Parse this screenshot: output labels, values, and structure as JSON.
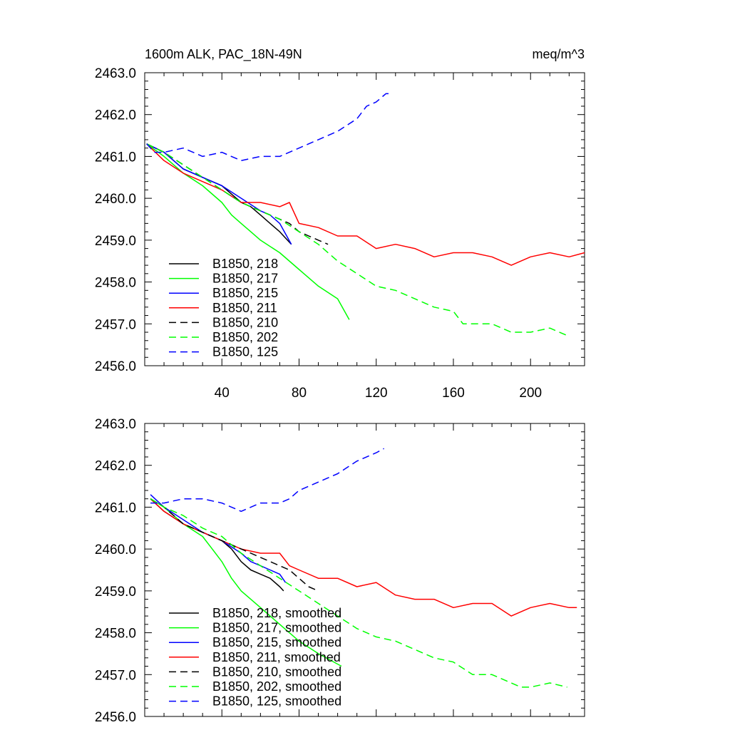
{
  "chart_data": [
    {
      "type": "line",
      "panel": "top",
      "title": "1600m ALK, PAC_18N-49N",
      "units": "meq/m^3",
      "xlabel": "",
      "ylabel": "",
      "xlim": [
        0,
        228
      ],
      "ylim": [
        2456.0,
        2463.0
      ],
      "x_ticks": [
        40,
        80,
        120,
        160,
        200
      ],
      "x_tick_labels": [
        "40",
        "80",
        "120",
        "160",
        "200"
      ],
      "y_ticks": [
        2456.0,
        2457.0,
        2458.0,
        2459.0,
        2460.0,
        2461.0,
        2462.0,
        2463.0
      ],
      "y_tick_labels": [
        "2456.0",
        "2457.0",
        "2458.0",
        "2459.0",
        "2460.0",
        "2461.0",
        "2462.0",
        "2463.0"
      ],
      "legend_position": "bottom-left",
      "series": [
        {
          "name": "B1850, 218",
          "color": "#000000",
          "dash": "solid",
          "x": [
            1,
            10,
            20,
            30,
            40,
            45,
            50,
            55,
            60,
            65,
            70,
            76
          ],
          "y": [
            2461.3,
            2461.1,
            2460.7,
            2460.5,
            2460.3,
            2460.1,
            2459.9,
            2459.8,
            2459.6,
            2459.4,
            2459.2,
            2458.9
          ]
        },
        {
          "name": "B1850, 217",
          "color": "#00ff00",
          "dash": "solid",
          "x": [
            1,
            10,
            20,
            30,
            40,
            45,
            50,
            55,
            60,
            70,
            80,
            90,
            100,
            106
          ],
          "y": [
            2461.3,
            2461.0,
            2460.6,
            2460.3,
            2459.9,
            2459.6,
            2459.4,
            2459.2,
            2459.0,
            2458.7,
            2458.3,
            2457.9,
            2457.6,
            2457.1
          ]
        },
        {
          "name": "B1850, 215",
          "color": "#0000ff",
          "dash": "solid",
          "x": [
            1,
            10,
            20,
            30,
            40,
            50,
            60,
            65,
            70,
            76
          ],
          "y": [
            2461.3,
            2461.1,
            2460.7,
            2460.5,
            2460.3,
            2460.0,
            2459.7,
            2459.6,
            2459.4,
            2458.9
          ]
        },
        {
          "name": "B1850, 211",
          "color": "#ff0000",
          "dash": "solid",
          "x": [
            1,
            10,
            20,
            30,
            40,
            50,
            60,
            70,
            75,
            80,
            90,
            100,
            110,
            120,
            130,
            140,
            150,
            160,
            170,
            180,
            190,
            200,
            210,
            220,
            228
          ],
          "y": [
            2461.3,
            2460.9,
            2460.6,
            2460.4,
            2460.2,
            2459.9,
            2459.9,
            2459.8,
            2459.9,
            2459.4,
            2459.3,
            2459.1,
            2459.1,
            2458.8,
            2458.9,
            2458.8,
            2458.6,
            2458.7,
            2458.7,
            2458.6,
            2458.4,
            2458.6,
            2458.7,
            2458.6,
            2458.7
          ]
        },
        {
          "name": "B1850, 210",
          "color": "#000000",
          "dash": "dashed",
          "x": [
            1,
            10,
            20,
            30,
            40,
            50,
            60,
            70,
            75,
            80,
            85,
            90,
            95
          ],
          "y": [
            2461.3,
            2461.1,
            2460.8,
            2460.5,
            2460.2,
            2459.9,
            2459.7,
            2459.5,
            2459.4,
            2459.2,
            2459.1,
            2459.0,
            2458.9
          ]
        },
        {
          "name": "B1850, 202",
          "color": "#00ff00",
          "dash": "dashed",
          "x": [
            1,
            10,
            20,
            30,
            40,
            50,
            60,
            70,
            80,
            90,
            100,
            110,
            120,
            130,
            140,
            150,
            160,
            165,
            170,
            180,
            190,
            200,
            210,
            220
          ],
          "y": [
            2461.3,
            2461.1,
            2460.8,
            2460.5,
            2460.2,
            2459.9,
            2459.7,
            2459.5,
            2459.2,
            2458.9,
            2458.5,
            2458.2,
            2457.9,
            2457.8,
            2457.6,
            2457.4,
            2457.3,
            2457.0,
            2457.0,
            2457.0,
            2456.8,
            2456.8,
            2456.9,
            2456.7
          ]
        },
        {
          "name": "B1850, 125",
          "color": "#0000ff",
          "dash": "dashed",
          "x": [
            1,
            5,
            10,
            20,
            30,
            40,
            50,
            60,
            70,
            80,
            90,
            100,
            110,
            115,
            120,
            125,
            128
          ],
          "y": [
            2461.3,
            2461.1,
            2461.1,
            2461.2,
            2461.0,
            2461.1,
            2460.9,
            2461.0,
            2461.0,
            2461.2,
            2461.4,
            2461.6,
            2461.9,
            2462.2,
            2462.3,
            2462.5,
            2462.5
          ]
        }
      ]
    },
    {
      "type": "line",
      "panel": "bottom",
      "title": "",
      "xlabel": "",
      "ylabel": "",
      "xlim": [
        0,
        228
      ],
      "ylim": [
        2456.0,
        2463.0
      ],
      "x_ticks": [
        40,
        80,
        120,
        160,
        200
      ],
      "y_ticks": [
        2456.0,
        2457.0,
        2458.0,
        2459.0,
        2460.0,
        2461.0,
        2462.0,
        2463.0
      ],
      "y_tick_labels": [
        "2456.0",
        "2457.0",
        "2458.0",
        "2459.0",
        "2460.0",
        "2461.0",
        "2462.0",
        "2463.0"
      ],
      "legend_position": "bottom-left",
      "series": [
        {
          "name": "B1850, 218, smoothed",
          "color": "#000000",
          "dash": "solid",
          "x": [
            3,
            10,
            20,
            30,
            40,
            45,
            50,
            55,
            60,
            65,
            70,
            72
          ],
          "y": [
            2461.2,
            2460.9,
            2460.6,
            2460.4,
            2460.2,
            2460.0,
            2459.7,
            2459.5,
            2459.4,
            2459.3,
            2459.1,
            2459.0
          ]
        },
        {
          "name": "B1850, 217, smoothed",
          "color": "#00ff00",
          "dash": "solid",
          "x": [
            3,
            10,
            20,
            30,
            35,
            40,
            45,
            50,
            60,
            70,
            80,
            90,
            102
          ],
          "y": [
            2461.2,
            2461.0,
            2460.6,
            2460.3,
            2460.0,
            2459.7,
            2459.3,
            2459.0,
            2458.6,
            2458.2,
            2457.8,
            2457.5,
            2457.2
          ]
        },
        {
          "name": "B1850, 215, smoothed",
          "color": "#0000ff",
          "dash": "solid",
          "x": [
            3,
            10,
            20,
            30,
            40,
            50,
            55,
            60,
            65,
            70,
            73
          ],
          "y": [
            2461.3,
            2461.0,
            2460.7,
            2460.4,
            2460.2,
            2459.9,
            2459.7,
            2459.6,
            2459.5,
            2459.4,
            2459.2
          ]
        },
        {
          "name": "B1850, 211, smoothed",
          "color": "#ff0000",
          "dash": "solid",
          "x": [
            3,
            10,
            20,
            30,
            40,
            50,
            60,
            70,
            75,
            80,
            90,
            100,
            110,
            120,
            130,
            140,
            150,
            160,
            170,
            180,
            190,
            200,
            210,
            220,
            224
          ],
          "y": [
            2461.2,
            2460.9,
            2460.6,
            2460.4,
            2460.2,
            2460.0,
            2459.9,
            2459.9,
            2459.6,
            2459.5,
            2459.3,
            2459.3,
            2459.1,
            2459.2,
            2458.9,
            2458.8,
            2458.8,
            2458.6,
            2458.7,
            2458.7,
            2458.4,
            2458.6,
            2458.7,
            2458.6,
            2458.6
          ]
        },
        {
          "name": "B1850, 210, smoothed",
          "color": "#000000",
          "dash": "dashed",
          "x": [
            3,
            10,
            20,
            30,
            40,
            50,
            60,
            70,
            75,
            80,
            85,
            90
          ],
          "y": [
            2461.2,
            2461.0,
            2460.6,
            2460.4,
            2460.2,
            2460.0,
            2459.8,
            2459.6,
            2459.5,
            2459.3,
            2459.1,
            2459.0
          ]
        },
        {
          "name": "B1850, 202, smoothed",
          "color": "#00ff00",
          "dash": "dashed",
          "x": [
            3,
            10,
            20,
            30,
            40,
            50,
            60,
            70,
            80,
            90,
            100,
            110,
            120,
            130,
            140,
            150,
            160,
            170,
            180,
            190,
            195,
            200,
            210,
            219
          ],
          "y": [
            2461.2,
            2461.0,
            2460.8,
            2460.5,
            2460.3,
            2459.9,
            2459.6,
            2459.3,
            2459.0,
            2458.7,
            2458.4,
            2458.1,
            2457.9,
            2457.8,
            2457.6,
            2457.4,
            2457.3,
            2457.0,
            2457.0,
            2456.8,
            2456.7,
            2456.7,
            2456.8,
            2456.7
          ]
        },
        {
          "name": "B1850, 125, smoothed",
          "color": "#0000ff",
          "dash": "dashed",
          "x": [
            3,
            10,
            20,
            30,
            40,
            45,
            50,
            55,
            60,
            70,
            75,
            80,
            90,
            100,
            110,
            120,
            124
          ],
          "y": [
            2461.1,
            2461.1,
            2461.2,
            2461.2,
            2461.1,
            2461.0,
            2460.9,
            2461.0,
            2461.1,
            2461.1,
            2461.2,
            2461.4,
            2461.6,
            2461.8,
            2462.1,
            2462.3,
            2462.4
          ]
        }
      ]
    }
  ]
}
